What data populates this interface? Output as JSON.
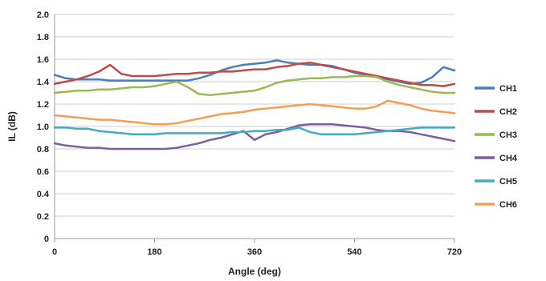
{
  "chart_data": {
    "type": "line",
    "xlabel": "Angle (deg)",
    "ylabel": "IL (dB)",
    "xlim": [
      0,
      720
    ],
    "ylim": [
      0,
      2.0
    ],
    "x_ticks": [
      "0",
      "180",
      "360",
      "540",
      "720"
    ],
    "y_ticks": [
      "0",
      "0.2",
      "0.4",
      "0.6",
      "0.8",
      "1.0",
      "1.2",
      "1.4",
      "1.6",
      "1.8",
      "2.0"
    ],
    "grid": true,
    "legend_position": "right",
    "x": [
      0,
      20,
      40,
      60,
      80,
      100,
      120,
      140,
      160,
      180,
      200,
      220,
      240,
      260,
      280,
      300,
      320,
      340,
      360,
      380,
      400,
      420,
      440,
      460,
      480,
      500,
      520,
      540,
      560,
      580,
      600,
      620,
      640,
      660,
      680,
      700,
      720
    ],
    "series": [
      {
        "name": "CH1",
        "color": "#4a7ebb",
        "values": [
          1.46,
          1.43,
          1.42,
          1.42,
          1.42,
          1.41,
          1.41,
          1.41,
          1.41,
          1.41,
          1.41,
          1.41,
          1.41,
          1.43,
          1.46,
          1.5,
          1.53,
          1.55,
          1.56,
          1.57,
          1.59,
          1.57,
          1.56,
          1.55,
          1.55,
          1.54,
          1.51,
          1.48,
          1.46,
          1.44,
          1.42,
          1.4,
          1.38,
          1.39,
          1.44,
          1.53,
          1.5
        ]
      },
      {
        "name": "CH2",
        "color": "#be4b48",
        "values": [
          1.38,
          1.4,
          1.42,
          1.45,
          1.49,
          1.55,
          1.47,
          1.45,
          1.45,
          1.45,
          1.46,
          1.47,
          1.47,
          1.48,
          1.48,
          1.49,
          1.49,
          1.5,
          1.51,
          1.51,
          1.53,
          1.54,
          1.56,
          1.57,
          1.55,
          1.53,
          1.51,
          1.49,
          1.47,
          1.45,
          1.43,
          1.41,
          1.39,
          1.37,
          1.37,
          1.36,
          1.38
        ]
      },
      {
        "name": "CH3",
        "color": "#98b954",
        "values": [
          1.3,
          1.31,
          1.32,
          1.32,
          1.33,
          1.33,
          1.34,
          1.35,
          1.35,
          1.36,
          1.38,
          1.4,
          1.35,
          1.29,
          1.28,
          1.29,
          1.3,
          1.31,
          1.32,
          1.35,
          1.39,
          1.41,
          1.42,
          1.43,
          1.43,
          1.44,
          1.44,
          1.45,
          1.45,
          1.44,
          1.4,
          1.37,
          1.35,
          1.33,
          1.31,
          1.3,
          1.3
        ]
      },
      {
        "name": "CH4",
        "color": "#7d5fa0",
        "values": [
          0.85,
          0.83,
          0.82,
          0.81,
          0.81,
          0.8,
          0.8,
          0.8,
          0.8,
          0.8,
          0.8,
          0.81,
          0.83,
          0.85,
          0.88,
          0.9,
          0.93,
          0.96,
          0.88,
          0.93,
          0.95,
          0.98,
          1.01,
          1.02,
          1.02,
          1.02,
          1.01,
          1.0,
          0.99,
          0.97,
          0.96,
          0.96,
          0.95,
          0.93,
          0.91,
          0.89,
          0.87
        ]
      },
      {
        "name": "CH5",
        "color": "#46aac5",
        "values": [
          0.99,
          0.99,
          0.98,
          0.98,
          0.96,
          0.95,
          0.94,
          0.93,
          0.93,
          0.93,
          0.94,
          0.94,
          0.94,
          0.94,
          0.94,
          0.94,
          0.95,
          0.95,
          0.96,
          0.96,
          0.97,
          0.97,
          0.99,
          0.95,
          0.93,
          0.93,
          0.93,
          0.93,
          0.94,
          0.95,
          0.96,
          0.97,
          0.98,
          0.99,
          0.99,
          0.99,
          0.99
        ]
      },
      {
        "name": "CH6",
        "color": "#f59d56",
        "values": [
          1.1,
          1.09,
          1.08,
          1.07,
          1.06,
          1.06,
          1.05,
          1.04,
          1.03,
          1.02,
          1.02,
          1.03,
          1.05,
          1.07,
          1.09,
          1.11,
          1.12,
          1.13,
          1.15,
          1.16,
          1.17,
          1.18,
          1.19,
          1.2,
          1.19,
          1.18,
          1.17,
          1.16,
          1.16,
          1.18,
          1.23,
          1.21,
          1.19,
          1.16,
          1.14,
          1.13,
          1.12
        ]
      }
    ]
  }
}
